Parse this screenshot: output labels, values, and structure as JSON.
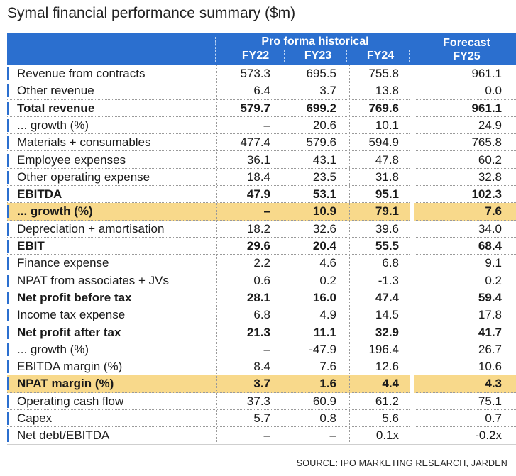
{
  "title": "Symal financial performance summary ($m)",
  "source": "SOURCE: IPO MARKETING RESEARCH, JARDEN",
  "colors": {
    "header": "#2b6fcf",
    "highlight": "#f8d98b",
    "accent_bar": "#2b6fcf"
  },
  "chart_data": {
    "type": "table",
    "header_group": "Pro forma historical",
    "forecast_header": "Forecast",
    "columns": [
      "FY22",
      "FY23",
      "FY24",
      "FY25"
    ],
    "rows": [
      {
        "label": "Revenue from contracts",
        "values": [
          "573.3",
          "695.5",
          "755.8",
          "961.1"
        ],
        "bold": false,
        "highlight": false
      },
      {
        "label": "Other revenue",
        "values": [
          "6.4",
          "3.7",
          "13.8",
          "0.0"
        ],
        "bold": false,
        "highlight": false
      },
      {
        "label": "Total revenue",
        "values": [
          "579.7",
          "699.2",
          "769.6",
          "961.1"
        ],
        "bold": true,
        "highlight": false
      },
      {
        "label": "... growth (%)",
        "values": [
          "–",
          "20.6",
          "10.1",
          "24.9"
        ],
        "bold": false,
        "highlight": false
      },
      {
        "label": "Materials + consumables",
        "values": [
          "477.4",
          "579.6",
          "594.9",
          "765.8"
        ],
        "bold": false,
        "highlight": false
      },
      {
        "label": "Employee expenses",
        "values": [
          "36.1",
          "43.1",
          "47.8",
          "60.2"
        ],
        "bold": false,
        "highlight": false
      },
      {
        "label": "Other operating expense",
        "values": [
          "18.4",
          "23.5",
          "31.8",
          "32.8"
        ],
        "bold": false,
        "highlight": false
      },
      {
        "label": "EBITDA",
        "values": [
          "47.9",
          "53.1",
          "95.1",
          "102.3"
        ],
        "bold": true,
        "highlight": false
      },
      {
        "label": "... growth (%)",
        "values": [
          "–",
          "10.9",
          "79.1",
          "7.6"
        ],
        "bold": true,
        "highlight": true
      },
      {
        "label": "Depreciation + amortisation",
        "values": [
          "18.2",
          "32.6",
          "39.6",
          "34.0"
        ],
        "bold": false,
        "highlight": false
      },
      {
        "label": "EBIT",
        "values": [
          "29.6",
          "20.4",
          "55.5",
          "68.4"
        ],
        "bold": true,
        "highlight": false
      },
      {
        "label": "Finance expense",
        "values": [
          "2.2",
          "4.6",
          "6.8",
          "9.1"
        ],
        "bold": false,
        "highlight": false
      },
      {
        "label": "NPAT from associates + JVs",
        "values": [
          "0.6",
          "0.2",
          "-1.3",
          "0.2"
        ],
        "bold": false,
        "highlight": false
      },
      {
        "label": "Net profit before tax",
        "values": [
          "28.1",
          "16.0",
          "47.4",
          "59.4"
        ],
        "bold": true,
        "highlight": false
      },
      {
        "label": "Income tax expense",
        "values": [
          "6.8",
          "4.9",
          "14.5",
          "17.8"
        ],
        "bold": false,
        "highlight": false
      },
      {
        "label": "Net profit after tax",
        "values": [
          "21.3",
          "11.1",
          "32.9",
          "41.7"
        ],
        "bold": true,
        "highlight": false
      },
      {
        "label": "... growth (%)",
        "values": [
          "–",
          "-47.9",
          "196.4",
          "26.7"
        ],
        "bold": false,
        "highlight": false
      },
      {
        "label": "EBITDA margin (%)",
        "values": [
          "8.4",
          "7.6",
          "12.6",
          "10.6"
        ],
        "bold": false,
        "highlight": false
      },
      {
        "label": "NPAT margin (%)",
        "values": [
          "3.7",
          "1.6",
          "4.4",
          "4.3"
        ],
        "bold": true,
        "highlight": true
      },
      {
        "label": "Operating cash flow",
        "values": [
          "37.3",
          "60.9",
          "61.2",
          "75.1"
        ],
        "bold": false,
        "highlight": false
      },
      {
        "label": "Capex",
        "values": [
          "5.7",
          "0.8",
          "5.6",
          "0.7"
        ],
        "bold": false,
        "highlight": false
      },
      {
        "label": "Net debt/EBITDA",
        "values": [
          "–",
          "–",
          "0.1x",
          "-0.2x"
        ],
        "bold": false,
        "highlight": false
      }
    ]
  }
}
